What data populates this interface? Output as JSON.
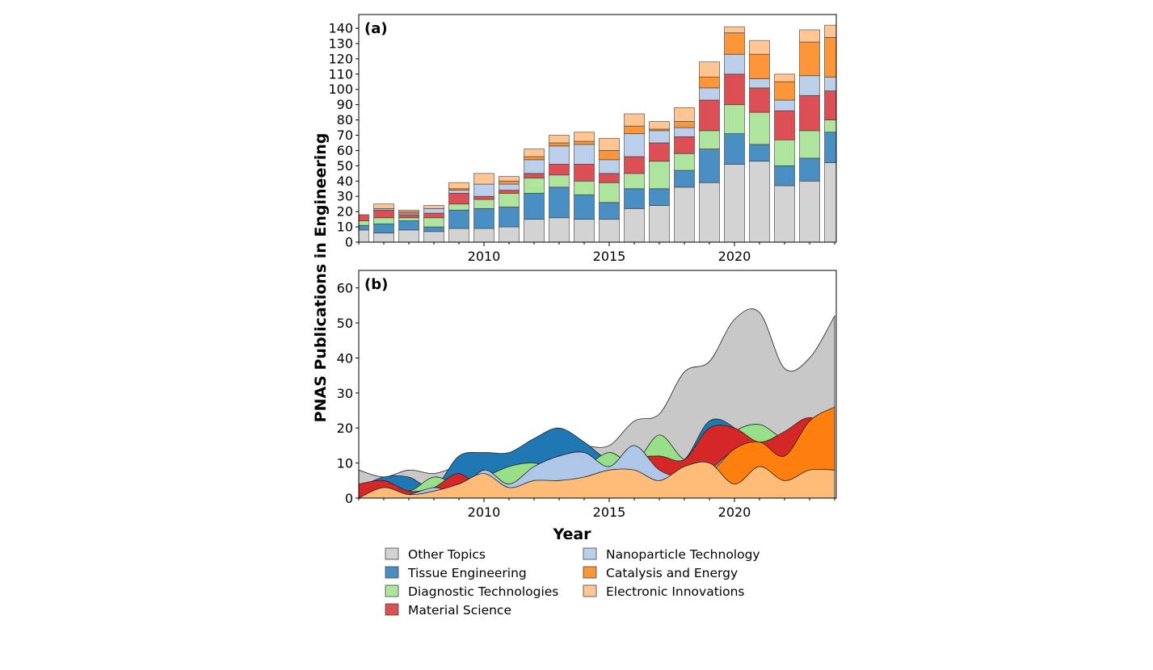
{
  "chart_data": [
    {
      "type": "bar",
      "stacked": true,
      "panel_label": "(a)",
      "ylabel": "PNAS Publications in Engineering",
      "xlabel": "",
      "xlim": [
        2005,
        2024
      ],
      "ylim": [
        0,
        149
      ],
      "yticks": [
        0,
        10,
        20,
        30,
        40,
        50,
        60,
        70,
        80,
        90,
        100,
        110,
        120,
        130,
        140
      ],
      "xticks": [
        2010,
        2015,
        2020
      ],
      "grid": false,
      "categories": [
        2005,
        2006,
        2007,
        2008,
        2009,
        2010,
        2011,
        2012,
        2013,
        2014,
        2015,
        2016,
        2017,
        2018,
        2019,
        2020,
        2021,
        2022,
        2023,
        2024
      ],
      "series": [
        {
          "name": "Other Topics",
          "color": "#d3d3d3",
          "values": [
            8,
            6,
            8,
            7,
            9,
            9,
            10,
            15,
            16,
            15,
            15,
            22,
            24,
            36,
            39,
            51,
            53,
            37,
            40,
            52
          ]
        },
        {
          "name": "Tissue Engineering",
          "color": "#4a8fc4",
          "values": [
            3,
            6,
            6,
            3,
            12,
            13,
            13,
            17,
            20,
            16,
            11,
            13,
            11,
            11,
            22,
            20,
            11,
            13,
            15,
            20
          ]
        },
        {
          "name": "Diagnostic Technologies",
          "color": "#aee49d",
          "values": [
            3,
            4,
            2,
            6,
            4,
            6,
            9,
            10,
            8,
            9,
            13,
            10,
            18,
            11,
            12,
            19,
            21,
            17,
            18,
            8
          ]
        },
        {
          "name": "Material Science",
          "color": "#dc4f55",
          "values": [
            4,
            5,
            2,
            3,
            7,
            2,
            2,
            3,
            7,
            11,
            6,
            11,
            12,
            11,
            20,
            20,
            16,
            19,
            23,
            19
          ]
        },
        {
          "name": "Nanoparticle Technology",
          "color": "#bccfea",
          "values": [
            0,
            1,
            1,
            3,
            2,
            8,
            4,
            9,
            12,
            13,
            9,
            15,
            8,
            6,
            8,
            13,
            6,
            7,
            13,
            9
          ]
        },
        {
          "name": "Catalysis and Energy",
          "color": "#fd9638",
          "values": [
            0,
            0,
            1,
            0,
            1,
            0,
            2,
            2,
            2,
            2,
            6,
            5,
            1,
            4,
            7,
            14,
            16,
            12,
            22,
            26
          ]
        },
        {
          "name": "Electronic Innovations",
          "color": "#ffc592",
          "values": [
            0,
            3,
            1,
            2,
            4,
            7,
            3,
            5,
            5,
            6,
            8,
            8,
            5,
            9,
            10,
            4,
            9,
            5,
            8,
            8
          ]
        }
      ]
    },
    {
      "type": "area",
      "smoothed": true,
      "overlapping": true,
      "panel_label": "(b)",
      "xlabel": "Year",
      "xlim": [
        2005,
        2024
      ],
      "ylim": [
        0,
        65
      ],
      "yticks": [
        0,
        10,
        20,
        30,
        40,
        50,
        60
      ],
      "xticks": [
        2010,
        2015,
        2020
      ],
      "grid": false,
      "series_colors": [
        "#c8c8c8",
        "#1f77b4",
        "#98df8a",
        "#d62728",
        "#aec7e8",
        "#ff7f0e",
        "#ffbb78"
      ]
    }
  ],
  "legend": {
    "placement": "bottom",
    "entries": [
      "Other Topics",
      "Tissue Engineering",
      "Diagnostic Technologies",
      "Material Science",
      "Nanoparticle Technology",
      "Catalysis and Energy",
      "Electronic Innovations"
    ]
  }
}
